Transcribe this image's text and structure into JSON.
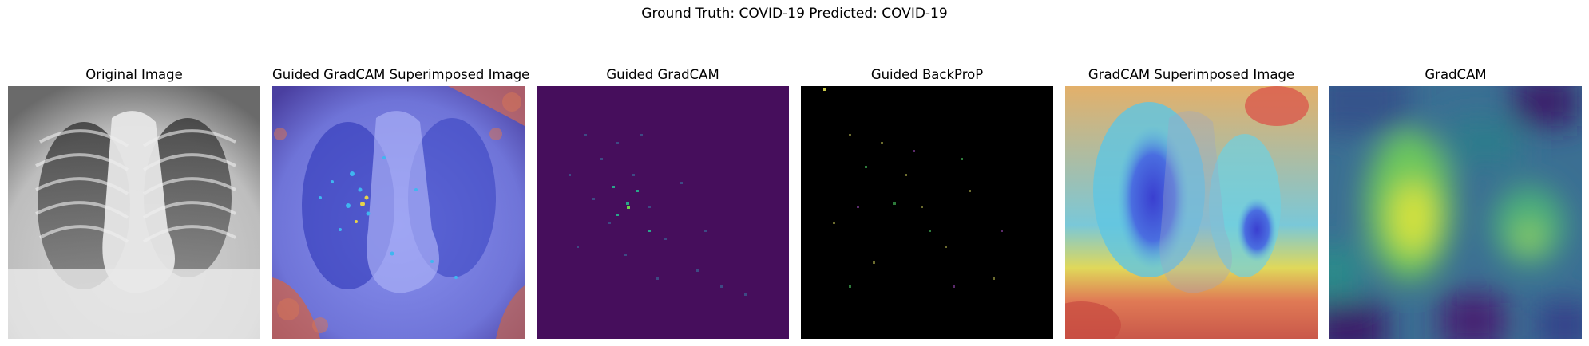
{
  "figure": {
    "suptitle": "Ground Truth: COVID-19 Predicted: COVID-19"
  },
  "panels": [
    {
      "title": "Original Image"
    },
    {
      "title": "Guided GradCAM Superimposed Image"
    },
    {
      "title": "Guided GradCAM"
    },
    {
      "title": "Guided BackProP"
    },
    {
      "title": "GradCAM Superimposed Image"
    },
    {
      "title": "GradCAM"
    }
  ]
}
